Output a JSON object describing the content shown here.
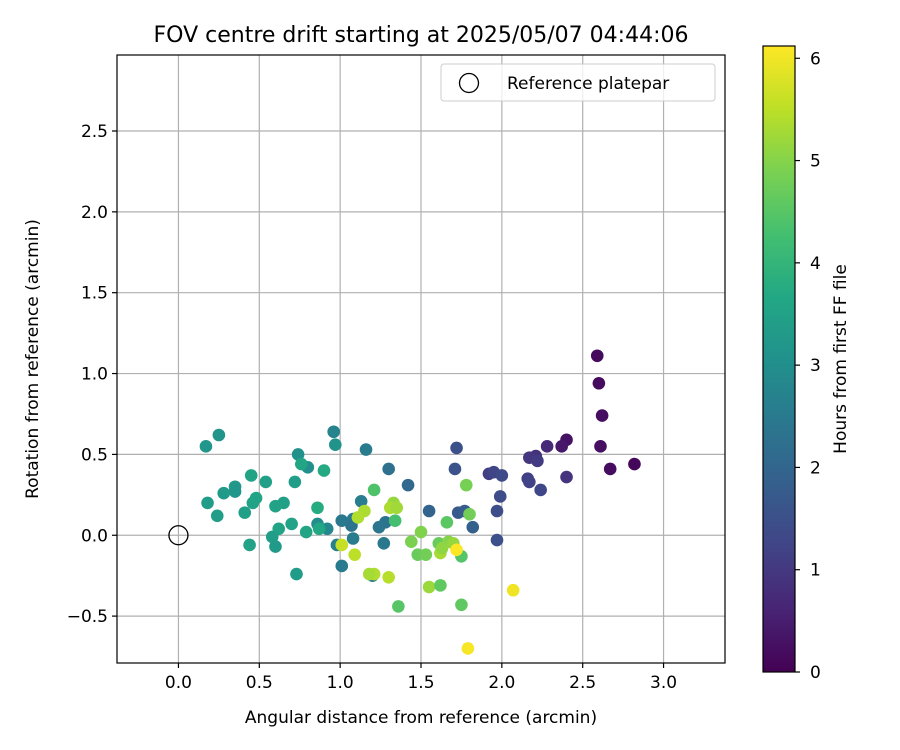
{
  "chart_data": {
    "type": "scatter",
    "title": "FOV centre drift starting at 2025/05/07 04:44:06",
    "xlabel": "Angular distance from reference (arcmin)",
    "ylabel": "Rotation from reference (arcmin)",
    "xlim": [
      -0.38,
      3.38
    ],
    "ylim": [
      -0.79,
      2.97
    ],
    "x_ticks": [
      0.0,
      0.5,
      1.0,
      1.5,
      2.0,
      2.5,
      3.0
    ],
    "y_ticks": [
      -0.5,
      0.0,
      0.5,
      1.0,
      1.5,
      2.0,
      2.5
    ],
    "x_tick_labels": [
      "0.0",
      "0.5",
      "1.0",
      "1.5",
      "2.0",
      "2.5",
      "3.0"
    ],
    "y_tick_labels": [
      "−0.5",
      "0.0",
      "0.5",
      "1.0",
      "1.5",
      "2.0",
      "2.5"
    ],
    "grid": true,
    "legend": {
      "placement": "top-right",
      "entries": [
        {
          "label": "Reference platepar",
          "marker": "open-circle",
          "x": 0.0,
          "y": 0.0
        }
      ]
    },
    "colorbar": {
      "label": "Hours from first FF file",
      "colormap": "viridis",
      "range": [
        0,
        6.12
      ],
      "ticks": [
        0,
        1,
        2,
        3,
        4,
        5,
        6
      ],
      "tick_labels": [
        "0",
        "1",
        "2",
        "3",
        "4",
        "5",
        "6"
      ]
    },
    "points": [
      {
        "x": 2.59,
        "y": 1.11,
        "h": 0.15
      },
      {
        "x": 2.6,
        "y": 0.94,
        "h": 0.18
      },
      {
        "x": 2.62,
        "y": 0.74,
        "h": 0.22
      },
      {
        "x": 2.61,
        "y": 0.55,
        "h": 0.25
      },
      {
        "x": 2.67,
        "y": 0.41,
        "h": 0.2
      },
      {
        "x": 2.82,
        "y": 0.44,
        "h": 0.1
      },
      {
        "x": 2.4,
        "y": 0.59,
        "h": 0.3
      },
      {
        "x": 2.37,
        "y": 0.55,
        "h": 0.4
      },
      {
        "x": 2.28,
        "y": 0.55,
        "h": 0.7
      },
      {
        "x": 2.4,
        "y": 0.36,
        "h": 0.9
      },
      {
        "x": 2.21,
        "y": 0.49,
        "h": 0.85
      },
      {
        "x": 2.17,
        "y": 0.48,
        "h": 0.95
      },
      {
        "x": 2.22,
        "y": 0.46,
        "h": 1.05
      },
      {
        "x": 2.16,
        "y": 0.35,
        "h": 1.15
      },
      {
        "x": 2.17,
        "y": 0.33,
        "h": 1.2
      },
      {
        "x": 2.24,
        "y": 0.28,
        "h": 1.3
      },
      {
        "x": 1.92,
        "y": 0.38,
        "h": 1.1
      },
      {
        "x": 1.95,
        "y": 0.39,
        "h": 1.25
      },
      {
        "x": 2.0,
        "y": 0.37,
        "h": 1.35
      },
      {
        "x": 1.99,
        "y": 0.24,
        "h": 1.4
      },
      {
        "x": 1.97,
        "y": 0.15,
        "h": 1.45
      },
      {
        "x": 1.97,
        "y": -0.03,
        "h": 1.5
      },
      {
        "x": 1.72,
        "y": 0.54,
        "h": 1.5
      },
      {
        "x": 1.71,
        "y": 0.41,
        "h": 1.55
      },
      {
        "x": 1.73,
        "y": 0.14,
        "h": 1.7
      },
      {
        "x": 1.77,
        "y": 0.15,
        "h": 1.8
      },
      {
        "x": 1.82,
        "y": 0.05,
        "h": 1.85
      },
      {
        "x": 1.55,
        "y": 0.15,
        "h": 1.95
      },
      {
        "x": 1.42,
        "y": 0.31,
        "h": 2.05
      },
      {
        "x": 1.3,
        "y": 0.41,
        "h": 2.25
      },
      {
        "x": 1.28,
        "y": 0.08,
        "h": 2.35
      },
      {
        "x": 1.24,
        "y": 0.05,
        "h": 2.4
      },
      {
        "x": 1.27,
        "y": -0.05,
        "h": 2.45
      },
      {
        "x": 1.2,
        "y": -0.25,
        "h": 2.5
      },
      {
        "x": 1.16,
        "y": 0.53,
        "h": 2.55
      },
      {
        "x": 1.13,
        "y": 0.21,
        "h": 2.6
      },
      {
        "x": 1.08,
        "y": 0.1,
        "h": 2.5
      },
      {
        "x": 1.07,
        "y": 0.06,
        "h": 2.35
      },
      {
        "x": 1.08,
        "y": -0.02,
        "h": 2.55
      },
      {
        "x": 1.01,
        "y": 0.09,
        "h": 2.45
      },
      {
        "x": 1.01,
        "y": -0.19,
        "h": 2.5
      },
      {
        "x": 0.98,
        "y": -0.06,
        "h": 2.65
      },
      {
        "x": 0.96,
        "y": 0.64,
        "h": 2.75
      },
      {
        "x": 0.97,
        "y": 0.56,
        "h": 3.1
      },
      {
        "x": 0.92,
        "y": 0.04,
        "h": 2.85
      },
      {
        "x": 0.86,
        "y": 0.07,
        "h": 2.95
      },
      {
        "x": 0.8,
        "y": 0.42,
        "h": 3.0
      },
      {
        "x": 0.74,
        "y": 0.5,
        "h": 3.05
      },
      {
        "x": 0.76,
        "y": 0.44,
        "h": 3.6
      },
      {
        "x": 0.9,
        "y": 0.4,
        "h": 3.7
      },
      {
        "x": 0.86,
        "y": 0.17,
        "h": 3.75
      },
      {
        "x": 0.87,
        "y": 0.04,
        "h": 3.65
      },
      {
        "x": 0.79,
        "y": 0.02,
        "h": 3.6
      },
      {
        "x": 0.72,
        "y": 0.33,
        "h": 3.4
      },
      {
        "x": 0.7,
        "y": 0.07,
        "h": 3.5
      },
      {
        "x": 0.73,
        "y": -0.24,
        "h": 3.35
      },
      {
        "x": 0.65,
        "y": 0.2,
        "h": 3.45
      },
      {
        "x": 0.62,
        "y": 0.04,
        "h": 3.55
      },
      {
        "x": 0.6,
        "y": 0.18,
        "h": 3.5
      },
      {
        "x": 0.58,
        "y": -0.01,
        "h": 3.4
      },
      {
        "x": 0.6,
        "y": -0.07,
        "h": 3.3
      },
      {
        "x": 0.54,
        "y": 0.33,
        "h": 3.45
      },
      {
        "x": 0.48,
        "y": 0.23,
        "h": 3.6
      },
      {
        "x": 0.46,
        "y": 0.2,
        "h": 3.5
      },
      {
        "x": 0.45,
        "y": 0.37,
        "h": 3.55
      },
      {
        "x": 0.44,
        "y": -0.06,
        "h": 3.5
      },
      {
        "x": 0.41,
        "y": 0.14,
        "h": 3.45
      },
      {
        "x": 0.35,
        "y": 0.3,
        "h": 3.25
      },
      {
        "x": 0.35,
        "y": 0.27,
        "h": 3.2
      },
      {
        "x": 0.28,
        "y": 0.26,
        "h": 3.3
      },
      {
        "x": 0.25,
        "y": 0.62,
        "h": 3.15
      },
      {
        "x": 0.17,
        "y": 0.55,
        "h": 3.2
      },
      {
        "x": 0.18,
        "y": 0.2,
        "h": 3.35
      },
      {
        "x": 0.24,
        "y": 0.12,
        "h": 3.4
      },
      {
        "x": 1.21,
        "y": 0.28,
        "h": 4.4
      },
      {
        "x": 1.34,
        "y": 0.09,
        "h": 4.3
      },
      {
        "x": 1.36,
        "y": -0.44,
        "h": 4.5
      },
      {
        "x": 1.44,
        "y": -0.04,
        "h": 4.9
      },
      {
        "x": 1.48,
        "y": -0.12,
        "h": 4.7
      },
      {
        "x": 1.53,
        "y": -0.12,
        "h": 4.8
      },
      {
        "x": 1.5,
        "y": 0.02,
        "h": 4.95
      },
      {
        "x": 1.55,
        "y": -0.32,
        "h": 5.2
      },
      {
        "x": 1.62,
        "y": -0.31,
        "h": 4.6
      },
      {
        "x": 1.61,
        "y": -0.05,
        "h": 4.7
      },
      {
        "x": 1.66,
        "y": 0.08,
        "h": 4.55
      },
      {
        "x": 1.67,
        "y": -0.04,
        "h": 5.0
      },
      {
        "x": 1.75,
        "y": -0.13,
        "h": 4.45
      },
      {
        "x": 1.75,
        "y": -0.43,
        "h": 4.6
      },
      {
        "x": 1.78,
        "y": 0.31,
        "h": 4.85
      },
      {
        "x": 1.8,
        "y": 0.13,
        "h": 4.8
      },
      {
        "x": 1.7,
        "y": -0.05,
        "h": 5.15
      },
      {
        "x": 1.62,
        "y": -0.11,
        "h": 5.3
      },
      {
        "x": 1.63,
        "y": -0.08,
        "h": 5.1
      },
      {
        "x": 1.33,
        "y": 0.2,
        "h": 5.15
      },
      {
        "x": 1.31,
        "y": 0.17,
        "h": 5.35
      },
      {
        "x": 1.3,
        "y": -0.26,
        "h": 5.45
      },
      {
        "x": 1.21,
        "y": -0.24,
        "h": 5.4
      },
      {
        "x": 1.18,
        "y": -0.24,
        "h": 5.3
      },
      {
        "x": 1.15,
        "y": 0.15,
        "h": 5.35
      },
      {
        "x": 1.11,
        "y": 0.11,
        "h": 5.4
      },
      {
        "x": 1.09,
        "y": -0.12,
        "h": 5.5
      },
      {
        "x": 1.01,
        "y": -0.06,
        "h": 5.6
      },
      {
        "x": 1.35,
        "y": 0.17,
        "h": 5.25
      },
      {
        "x": 1.72,
        "y": -0.09,
        "h": 6.1
      },
      {
        "x": 1.79,
        "y": -0.7,
        "h": 6.05
      },
      {
        "x": 2.07,
        "y": -0.34,
        "h": 6.0
      }
    ]
  }
}
